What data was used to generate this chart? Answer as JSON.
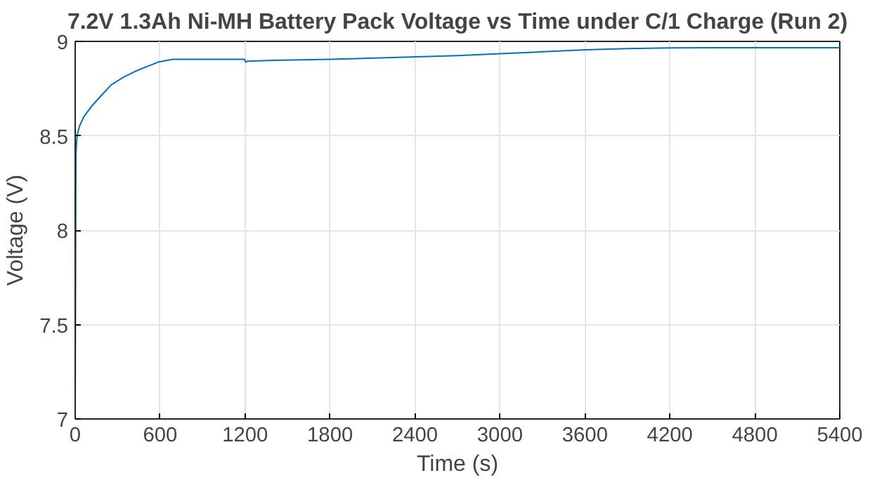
{
  "chart_data": {
    "type": "line",
    "title": "7.2V 1.3Ah Ni-MH Battery Pack Voltage vs Time under C/1 Charge (Run 2)",
    "xlabel": "Time (s)",
    "ylabel": "Voltage (V)",
    "x": [
      0,
      5,
      13,
      30,
      60,
      120,
      180,
      255,
      340,
      420,
      500,
      585,
      650,
      690,
      800,
      1000,
      1195,
      1205,
      1215,
      1400,
      1800,
      2280,
      2700,
      3000,
      3300,
      3600,
      3900,
      4200,
      4800,
      5400
    ],
    "series": [
      {
        "color": "#0072bd",
        "values": [
          7.0,
          8.4,
          8.5,
          8.55,
          8.6,
          8.66,
          8.71,
          8.77,
          8.81,
          8.84,
          8.865,
          8.89,
          8.9,
          8.905,
          8.905,
          8.905,
          8.905,
          8.89,
          8.895,
          8.9,
          8.905,
          8.915,
          8.925,
          8.935,
          8.945,
          8.955,
          8.962,
          8.966,
          8.967,
          8.967
        ]
      }
    ],
    "xlim": [
      0,
      5400
    ],
    "ylim": [
      7,
      9
    ],
    "xticks": [
      0,
      600,
      1200,
      1800,
      2400,
      3000,
      3600,
      4200,
      4800,
      5400
    ],
    "yticks": [
      7,
      7.5,
      8,
      8.5,
      9
    ],
    "grid": true,
    "line_style": "solid",
    "marker": "none"
  }
}
